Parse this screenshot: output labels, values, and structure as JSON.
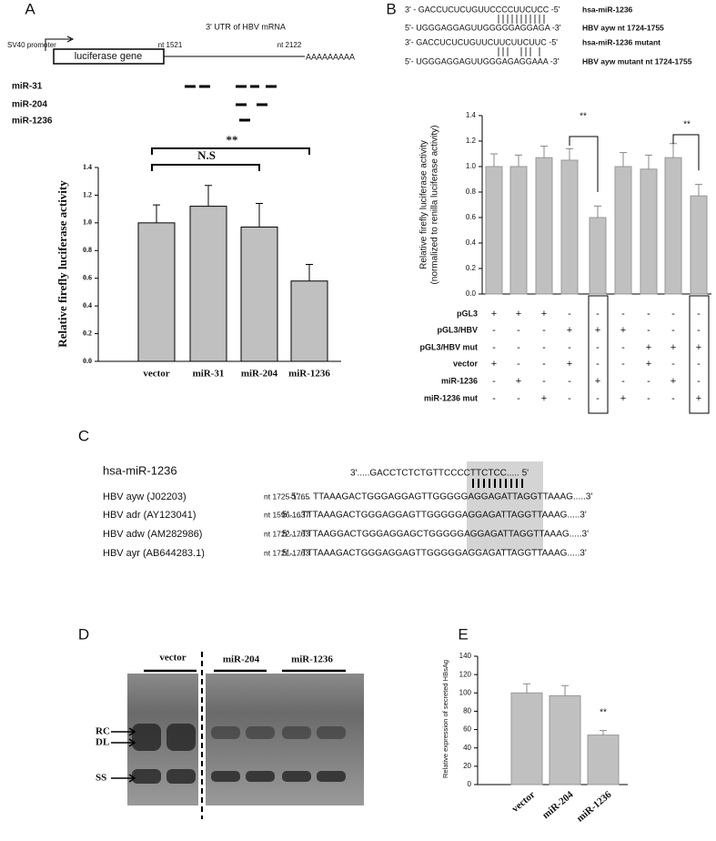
{
  "panel_labels": [
    "A",
    "B",
    "C",
    "D",
    "E"
  ],
  "diagram": {
    "promoter": "SV40 promoter",
    "gene": "luciferase gene",
    "utr": "3' UTR of HBV mRNA",
    "start": "nt 1521",
    "end": "nt 2122",
    "polya": "AAAAAAAAA",
    "rows": [
      "miR-31",
      "miR-204",
      "miR-1236"
    ]
  },
  "sequences": [
    {
      "seq": "3' - GACCUCUCUGUUCCCCUUCUCC -5'",
      "label": "hsa-miR-1236"
    },
    {
      "seq": "5'- UGGGAGGAGUUGGGGGAGGAGA -3'",
      "label": "HBV ayw nt 1724-1755"
    },
    {
      "seq": "3'- GACCUCUCUGUUCUUCUUCUUC -5'",
      "label": "hsa-miR-1236 mutant"
    },
    {
      "seq": "5'- UGGGAGGAGUUGGGAGAGGAAA -3'",
      "label": "HBV ayw mutant nt 1724-1755"
    }
  ],
  "treatment_table": {
    "rows": [
      {
        "label": "pGL3",
        "cells": [
          "+",
          "+",
          "+",
          "-",
          "-",
          "-",
          "-",
          "-",
          "-"
        ]
      },
      {
        "label": "pGL3/HBV",
        "cells": [
          "-",
          "-",
          "-",
          "+",
          "+",
          "+",
          "-",
          "-",
          "-"
        ]
      },
      {
        "label": "pGL3/HBV mut",
        "cells": [
          "-",
          "-",
          "-",
          "-",
          "-",
          "-",
          "+",
          "+",
          "+"
        ]
      },
      {
        "label": "vector",
        "cells": [
          "+",
          "-",
          "-",
          "+",
          "-",
          "-",
          "+",
          "-",
          "-"
        ]
      },
      {
        "label": "miR-1236",
        "cells": [
          "-",
          "+",
          "-",
          "-",
          "+",
          "-",
          "-",
          "+",
          "-"
        ]
      },
      {
        "label": "miR-1236 mut",
        "cells": [
          "-",
          "-",
          "+",
          "-",
          "-",
          "+",
          "-",
          "-",
          "+"
        ]
      }
    ]
  },
  "alignment": {
    "mirna": "hsa-miR-1236",
    "mirna_seq": "3'.....GACCTCTCTGTTCCCCTTCTCC..... 5'",
    "rows": [
      {
        "strain": "HBV ayw (J02203)",
        "nt": "nt 1725-1765",
        "seq": "5'..... TTAAAGACTGGGAGGAGTTGGGGGAGGAGATTAGGTTAAAG.....3'"
      },
      {
        "strain": "HBV adr (AY123041)",
        "nt": "nt 1596-1637",
        "seq": "5'.....TTTAAAGACTGGGAGGAGTTGGGGGAGGAGATTAGGTTAAAG.....3'"
      },
      {
        "strain": "HBV adw (AM282986)",
        "nt": "nt 1722-1763",
        "seq": "5'.....TTTAAGGACTGGGAGGAGCTGGGGGAGGAGATTAGGTTAAAG.....3'"
      },
      {
        "strain": "HBV ayr (AB644283.1)",
        "nt": "nt 1721-1763",
        "seq": "5'.....TTTAAAGACTGGGAGGAGTTGGGGGAGGAGATTAGGTTAAAG.....3'"
      }
    ]
  },
  "blot": {
    "lanes": [
      "vector",
      "miR-204",
      "miR-1236"
    ],
    "bands": [
      "RC",
      "DL",
      "SS"
    ]
  },
  "chart_data": [
    {
      "type": "bar",
      "y_label": "Relative firefly luciferase activity",
      "categories": [
        "vector",
        "miR-31",
        "miR-204",
        "miR-1236"
      ],
      "values": [
        1.0,
        1.12,
        0.97,
        0.58
      ],
      "errors": [
        0.13,
        0.15,
        0.17,
        0.12
      ],
      "color": "#c0c0c0",
      "ylim": [
        0,
        1.4
      ],
      "yticks": [
        {
          "value": 0,
          "label": "0.0"
        },
        {
          "value": 0.2,
          "label": "0.2"
        },
        {
          "value": 0.4,
          "label": "0.4"
        },
        {
          "value": 0.6,
          "label": "0.6"
        },
        {
          "value": 0.8,
          "label": "0.8"
        },
        {
          "value": 1.0,
          "label": "1.0"
        },
        {
          "value": 1.2,
          "label": "1.2"
        },
        {
          "value": 1.4,
          "label": "1.4"
        }
      ],
      "annotations": [
        "**",
        "N.S"
      ]
    },
    {
      "type": "bar",
      "y_label": [
        "Relative firefly luciferase activity",
        "(normalized to renilla luciferase activity)"
      ],
      "values": [
        1.0,
        1.0,
        1.07,
        1.05,
        0.6,
        1.0,
        0.98,
        1.07,
        0.77
      ],
      "errors": [
        0.1,
        0.09,
        0.09,
        0.09,
        0.09,
        0.11,
        0.11,
        0.11,
        0.09
      ],
      "color": "#c0c0c0",
      "ylim": [
        0,
        1.4
      ],
      "yticks": [
        {
          "value": 0,
          "label": "0.0"
        },
        {
          "value": 0.2,
          "label": "0.2"
        },
        {
          "value": 0.4,
          "label": "0.4"
        },
        {
          "value": 0.6,
          "label": "0.6"
        },
        {
          "value": 0.8,
          "label": "0.8"
        },
        {
          "value": 1.0,
          "label": "1.0"
        },
        {
          "value": 1.2,
          "label": "1.2"
        },
        {
          "value": 1.4,
          "label": "1.4"
        }
      ],
      "annotations": [
        "**",
        "**"
      ]
    },
    {
      "type": "bar",
      "y_label": "Relative expression of secreted HBsAg",
      "categories": [
        "vector",
        "miR-204",
        "miR-1236"
      ],
      "values": [
        100,
        97,
        54
      ],
      "errors": [
        10,
        11,
        5
      ],
      "color": "#c0c0c0",
      "ylim": [
        0,
        140
      ],
      "yticks": [
        0,
        20,
        40,
        60,
        80,
        100,
        120,
        140
      ],
      "annotations": [
        "**"
      ]
    }
  ]
}
